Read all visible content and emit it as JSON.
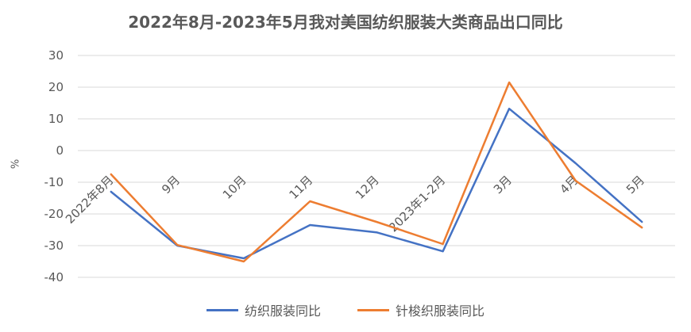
{
  "chart_data": {
    "type": "line",
    "title": "2022年8月-2023年5月我对美国纺织服装大类商品出口同比",
    "xlabel": "",
    "ylabel": "%",
    "ylim": [
      -40,
      30
    ],
    "yticks": [
      30,
      20,
      10,
      0,
      -10,
      -20,
      -30,
      -40
    ],
    "grid": true,
    "legend_position": "bottom",
    "categories": [
      "2022年8月",
      "9月",
      "10月",
      "11月",
      "12月",
      "2023年1-2月",
      "3月",
      "4月",
      "5月"
    ],
    "series": [
      {
        "name": "纺织服装同比",
        "color": "#4472C4",
        "values": [
          -13,
          -30,
          -34,
          -23.5,
          -25.8,
          -31.8,
          13.2,
          -4,
          -22.5
        ]
      },
      {
        "name": "针梭织服装同比",
        "color": "#ED7D31",
        "values": [
          -7.5,
          -29.8,
          -35,
          -16,
          -22.5,
          -29.5,
          21.5,
          -9.5,
          -24.3
        ]
      }
    ]
  }
}
